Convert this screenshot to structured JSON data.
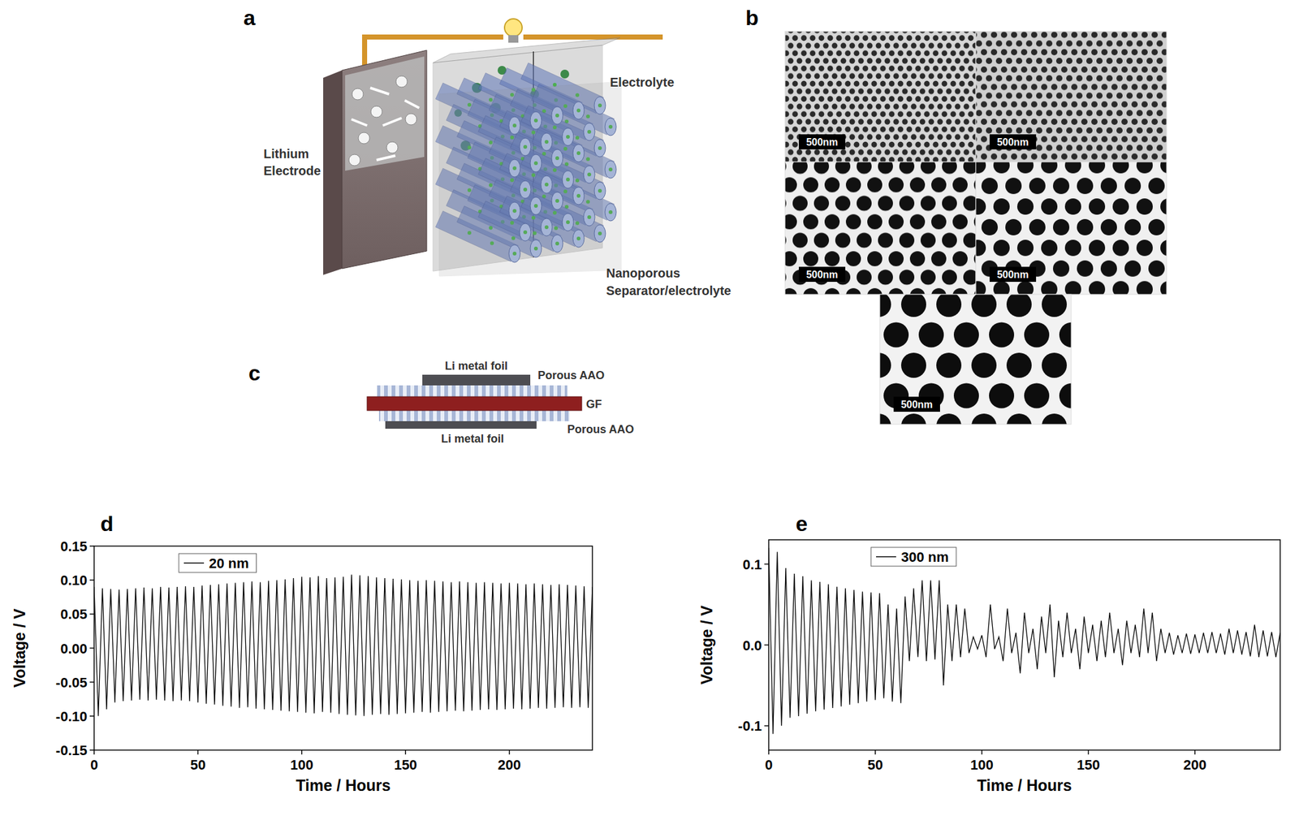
{
  "panel_labels": [
    "a",
    "b",
    "c",
    "d",
    "e"
  ],
  "schematic": {
    "lithium_electrode": [
      "Lithium",
      "Electrode"
    ],
    "electrolyte": "Electrolyte",
    "separator": [
      "Nanoporous",
      "Separator/electrolyte"
    ]
  },
  "sem": {
    "scale_bars": [
      "500nm",
      "500nm",
      "500nm",
      "500nm",
      "500nm"
    ]
  },
  "cell": {
    "top_foil": "Li metal foil",
    "top_aao": "Porous AAO",
    "gf": "GF",
    "bottom_aao": "Porous AAO",
    "bottom_foil": "Li metal foil"
  },
  "chart_data": [
    {
      "type": "line",
      "xlabel": "Time / Hours",
      "ylabel": "Voltage / V",
      "xlim": [
        0,
        240
      ],
      "ylim": [
        -0.15,
        0.15
      ],
      "xticks": [
        0,
        50,
        100,
        150,
        200
      ],
      "yticks": [
        -0.15,
        {
          "value": -0.1,
          "label": "-0.10"
        },
        -0.05,
        {
          "value": 0,
          "label": "0.00"
        },
        0.05,
        {
          "value": 0.1,
          "label": "0.10"
        },
        0.15
      ],
      "legend": "top",
      "x": [
        0,
        2,
        4,
        6,
        8,
        10,
        12,
        14,
        16,
        18,
        20,
        22,
        24,
        26,
        28,
        30,
        32,
        34,
        36,
        38,
        40,
        42,
        44,
        46,
        48,
        50,
        52,
        54,
        56,
        58,
        60,
        62,
        64,
        66,
        68,
        70,
        72,
        74,
        76,
        78,
        80,
        82,
        84,
        86,
        88,
        90,
        92,
        94,
        96,
        98,
        100,
        102,
        104,
        106,
        108,
        110,
        112,
        114,
        116,
        118,
        120,
        122,
        124,
        126,
        128,
        130,
        132,
        134,
        136,
        138,
        140,
        142,
        144,
        146,
        148,
        150,
        152,
        154,
        156,
        158,
        160,
        162,
        164,
        166,
        168,
        170,
        172,
        174,
        176,
        178,
        180,
        182,
        184,
        186,
        188,
        190,
        192,
        194,
        196,
        198,
        200,
        202,
        204,
        206,
        208,
        210,
        212,
        214,
        216,
        218,
        220,
        222,
        224,
        226,
        228,
        230,
        232,
        234,
        236,
        238,
        240
      ],
      "series": [
        {
          "name": "20 nm",
          "color": "#000000",
          "values": [
            0.09,
            -0.1,
            0.088,
            -0.09,
            0.087,
            -0.08,
            0.086,
            -0.078,
            0.087,
            -0.077,
            0.088,
            -0.076,
            0.089,
            -0.077,
            0.088,
            -0.076,
            0.09,
            -0.077,
            0.089,
            -0.078,
            0.09,
            -0.077,
            0.091,
            -0.078,
            0.09,
            -0.08,
            0.092,
            -0.082,
            0.093,
            -0.083,
            0.094,
            -0.085,
            0.095,
            -0.086,
            0.096,
            -0.088,
            0.097,
            -0.087,
            0.098,
            -0.089,
            0.097,
            -0.09,
            0.099,
            -0.091,
            0.1,
            -0.092,
            0.101,
            -0.093,
            0.103,
            -0.094,
            0.105,
            -0.095,
            0.104,
            -0.096,
            0.106,
            -0.094,
            0.103,
            -0.095,
            0.104,
            -0.097,
            0.105,
            -0.098,
            0.108,
            -0.099,
            0.107,
            -0.1,
            0.106,
            -0.098,
            0.104,
            -0.097,
            0.103,
            -0.098,
            0.102,
            -0.097,
            0.101,
            -0.096,
            0.1,
            -0.095,
            0.099,
            -0.094,
            0.1,
            -0.095,
            0.099,
            -0.094,
            0.098,
            -0.093,
            0.097,
            -0.092,
            0.098,
            -0.093,
            0.097,
            -0.092,
            0.096,
            -0.091,
            0.097,
            -0.09,
            0.096,
            -0.091,
            0.095,
            -0.09,
            0.096,
            -0.089,
            0.095,
            -0.09,
            0.094,
            -0.089,
            0.095,
            -0.088,
            0.094,
            -0.089,
            0.093,
            -0.088,
            0.094,
            -0.087,
            0.093,
            -0.088,
            0.092,
            -0.087,
            0.091,
            -0.088,
            0.09
          ]
        }
      ]
    },
    {
      "type": "line",
      "xlabel": "Time / Hours",
      "ylabel": "Voltage / V",
      "xlim": [
        0,
        240
      ],
      "ylim": [
        -0.13,
        0.13
      ],
      "xticks": [
        0,
        50,
        100,
        150,
        200
      ],
      "yticks": [
        -0.1,
        {
          "value": 0,
          "label": "0.0"
        },
        0.1
      ],
      "legend": "top",
      "x": [
        0,
        2,
        4,
        6,
        8,
        10,
        12,
        14,
        16,
        18,
        20,
        22,
        24,
        26,
        28,
        30,
        32,
        34,
        36,
        38,
        40,
        42,
        44,
        46,
        48,
        50,
        52,
        54,
        56,
        58,
        60,
        62,
        64,
        66,
        68,
        70,
        72,
        74,
        76,
        78,
        80,
        82,
        84,
        86,
        88,
        90,
        92,
        94,
        96,
        98,
        100,
        102,
        104,
        106,
        108,
        110,
        112,
        114,
        116,
        118,
        120,
        122,
        124,
        126,
        128,
        130,
        132,
        134,
        136,
        138,
        140,
        142,
        144,
        146,
        148,
        150,
        152,
        154,
        156,
        158,
        160,
        162,
        164,
        166,
        168,
        170,
        172,
        174,
        176,
        178,
        180,
        182,
        184,
        186,
        188,
        190,
        192,
        194,
        196,
        198,
        200,
        202,
        204,
        206,
        208,
        210,
        212,
        214,
        216,
        218,
        220,
        222,
        224,
        226,
        228,
        230,
        232,
        234,
        236,
        238,
        240
      ],
      "series": [
        {
          "name": "300 nm",
          "color": "#000000",
          "values": [
            0.12,
            -0.11,
            0.115,
            -0.1,
            0.095,
            -0.09,
            0.088,
            -0.088,
            0.085,
            -0.085,
            0.08,
            -0.082,
            0.078,
            -0.08,
            0.075,
            -0.078,
            0.072,
            -0.076,
            0.07,
            -0.074,
            0.068,
            -0.072,
            0.066,
            -0.07,
            0.065,
            -0.068,
            0.064,
            -0.066,
            0.05,
            -0.07,
            0.045,
            -0.072,
            0.06,
            -0.02,
            0.07,
            -0.015,
            0.08,
            -0.02,
            0.08,
            -0.018,
            0.08,
            -0.05,
            0.05,
            -0.02,
            0.05,
            -0.015,
            0.045,
            -0.01,
            0.01,
            -0.005,
            0.012,
            -0.015,
            0.05,
            -0.005,
            0.01,
            -0.02,
            0.045,
            -0.01,
            0.015,
            -0.035,
            0.04,
            -0.01,
            0.02,
            -0.03,
            0.035,
            -0.01,
            0.05,
            -0.04,
            0.03,
            -0.015,
            0.04,
            -0.01,
            0.02,
            -0.03,
            0.035,
            -0.01,
            0.025,
            -0.02,
            0.03,
            -0.015,
            0.04,
            -0.01,
            0.02,
            -0.025,
            0.03,
            -0.01,
            0.025,
            -0.015,
            0.045,
            -0.01,
            0.04,
            -0.02,
            0.02,
            -0.01,
            0.015,
            -0.012,
            0.012,
            -0.01,
            0.014,
            -0.011,
            0.013,
            -0.01,
            0.015,
            -0.01,
            0.016,
            -0.01,
            0.014,
            -0.012,
            0.02,
            -0.01,
            0.018,
            -0.012,
            0.016,
            -0.014,
            0.025,
            -0.015,
            0.018,
            -0.014,
            0.016,
            -0.015,
            0.015
          ]
        }
      ]
    }
  ]
}
